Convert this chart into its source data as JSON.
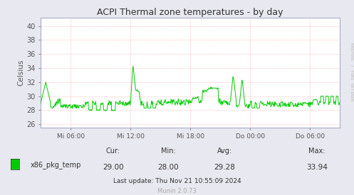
{
  "title": "ACPI Thermal zone temperatures - by day",
  "ylabel": "Celsius",
  "yticks": [
    26,
    28,
    30,
    32,
    34,
    36,
    38,
    40
  ],
  "ymin": 25.5,
  "ymax": 41.2,
  "line_color": "#00cc00",
  "bg_color": "#e8e8f0",
  "plot_bg_color": "#ffffff",
  "grid_color": "#ff9999",
  "axis_color": "#aaaacc",
  "xtick_labels": [
    "Mi 06:00",
    "Mi 12:00",
    "Mi 18:00",
    "Do 00:00",
    "Do 06:00"
  ],
  "legend_label": "x86_pkg_temp",
  "cur": "29.00",
  "min": "28.00",
  "avg": "29.28",
  "max": "33.94",
  "last_update": "Last update: Thu Nov 21 10:55:09 2024",
  "munin_version": "Munin 2.0.73",
  "watermark": "RRDTOOL / TOBI OETIKER"
}
